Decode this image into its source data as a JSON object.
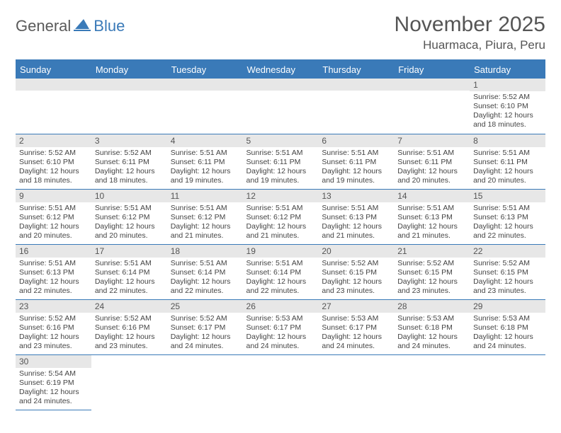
{
  "brand": {
    "part1": "General",
    "part2": "Blue"
  },
  "title": "November 2025",
  "location": "Huarmaca, Piura, Peru",
  "colors": {
    "header_bg": "#3a7ab8",
    "header_text": "#ffffff",
    "daynum_bg": "#e7e7e7",
    "text": "#444444",
    "rule": "#3a7ab8"
  },
  "weekdays": [
    "Sunday",
    "Monday",
    "Tuesday",
    "Wednesday",
    "Thursday",
    "Friday",
    "Saturday"
  ],
  "weeks": [
    [
      null,
      null,
      null,
      null,
      null,
      null,
      {
        "n": "1",
        "sr": "5:52 AM",
        "ss": "6:10 PM",
        "dl": "12 hours and 18 minutes."
      }
    ],
    [
      {
        "n": "2",
        "sr": "5:52 AM",
        "ss": "6:10 PM",
        "dl": "12 hours and 18 minutes."
      },
      {
        "n": "3",
        "sr": "5:52 AM",
        "ss": "6:11 PM",
        "dl": "12 hours and 18 minutes."
      },
      {
        "n": "4",
        "sr": "5:51 AM",
        "ss": "6:11 PM",
        "dl": "12 hours and 19 minutes."
      },
      {
        "n": "5",
        "sr": "5:51 AM",
        "ss": "6:11 PM",
        "dl": "12 hours and 19 minutes."
      },
      {
        "n": "6",
        "sr": "5:51 AM",
        "ss": "6:11 PM",
        "dl": "12 hours and 19 minutes."
      },
      {
        "n": "7",
        "sr": "5:51 AM",
        "ss": "6:11 PM",
        "dl": "12 hours and 20 minutes."
      },
      {
        "n": "8",
        "sr": "5:51 AM",
        "ss": "6:11 PM",
        "dl": "12 hours and 20 minutes."
      }
    ],
    [
      {
        "n": "9",
        "sr": "5:51 AM",
        "ss": "6:12 PM",
        "dl": "12 hours and 20 minutes."
      },
      {
        "n": "10",
        "sr": "5:51 AM",
        "ss": "6:12 PM",
        "dl": "12 hours and 20 minutes."
      },
      {
        "n": "11",
        "sr": "5:51 AM",
        "ss": "6:12 PM",
        "dl": "12 hours and 21 minutes."
      },
      {
        "n": "12",
        "sr": "5:51 AM",
        "ss": "6:12 PM",
        "dl": "12 hours and 21 minutes."
      },
      {
        "n": "13",
        "sr": "5:51 AM",
        "ss": "6:13 PM",
        "dl": "12 hours and 21 minutes."
      },
      {
        "n": "14",
        "sr": "5:51 AM",
        "ss": "6:13 PM",
        "dl": "12 hours and 21 minutes."
      },
      {
        "n": "15",
        "sr": "5:51 AM",
        "ss": "6:13 PM",
        "dl": "12 hours and 22 minutes."
      }
    ],
    [
      {
        "n": "16",
        "sr": "5:51 AM",
        "ss": "6:13 PM",
        "dl": "12 hours and 22 minutes."
      },
      {
        "n": "17",
        "sr": "5:51 AM",
        "ss": "6:14 PM",
        "dl": "12 hours and 22 minutes."
      },
      {
        "n": "18",
        "sr": "5:51 AM",
        "ss": "6:14 PM",
        "dl": "12 hours and 22 minutes."
      },
      {
        "n": "19",
        "sr": "5:51 AM",
        "ss": "6:14 PM",
        "dl": "12 hours and 22 minutes."
      },
      {
        "n": "20",
        "sr": "5:52 AM",
        "ss": "6:15 PM",
        "dl": "12 hours and 23 minutes."
      },
      {
        "n": "21",
        "sr": "5:52 AM",
        "ss": "6:15 PM",
        "dl": "12 hours and 23 minutes."
      },
      {
        "n": "22",
        "sr": "5:52 AM",
        "ss": "6:15 PM",
        "dl": "12 hours and 23 minutes."
      }
    ],
    [
      {
        "n": "23",
        "sr": "5:52 AM",
        "ss": "6:16 PM",
        "dl": "12 hours and 23 minutes."
      },
      {
        "n": "24",
        "sr": "5:52 AM",
        "ss": "6:16 PM",
        "dl": "12 hours and 23 minutes."
      },
      {
        "n": "25",
        "sr": "5:52 AM",
        "ss": "6:17 PM",
        "dl": "12 hours and 24 minutes."
      },
      {
        "n": "26",
        "sr": "5:53 AM",
        "ss": "6:17 PM",
        "dl": "12 hours and 24 minutes."
      },
      {
        "n": "27",
        "sr": "5:53 AM",
        "ss": "6:17 PM",
        "dl": "12 hours and 24 minutes."
      },
      {
        "n": "28",
        "sr": "5:53 AM",
        "ss": "6:18 PM",
        "dl": "12 hours and 24 minutes."
      },
      {
        "n": "29",
        "sr": "5:53 AM",
        "ss": "6:18 PM",
        "dl": "12 hours and 24 minutes."
      }
    ],
    [
      {
        "n": "30",
        "sr": "5:54 AM",
        "ss": "6:19 PM",
        "dl": "12 hours and 24 minutes."
      },
      null,
      null,
      null,
      null,
      null,
      null
    ]
  ],
  "labels": {
    "sunrise": "Sunrise:",
    "sunset": "Sunset:",
    "daylight": "Daylight:"
  }
}
